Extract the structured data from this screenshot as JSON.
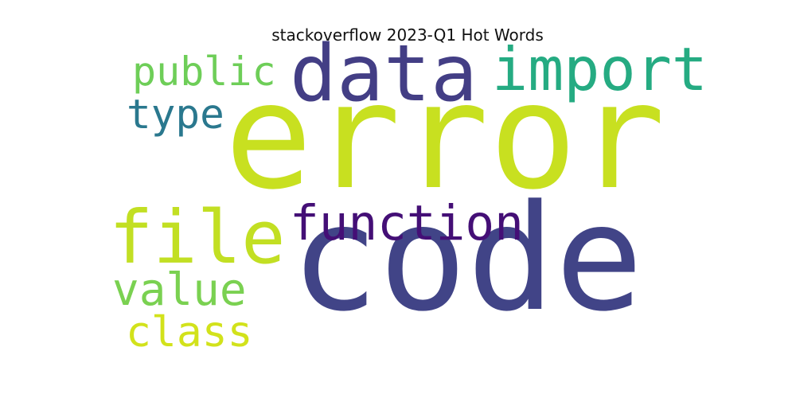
{
  "title": "stackoverflow 2023-Q1 Hot Words",
  "cloud": {
    "words": [
      {
        "id": "error",
        "text": "error",
        "color": "#c8e020"
      },
      {
        "id": "code",
        "text": "code",
        "color": "#414487"
      },
      {
        "id": "data",
        "text": "data",
        "color": "#433e85"
      },
      {
        "id": "import",
        "text": "import",
        "color": "#25ab82"
      },
      {
        "id": "file",
        "text": "file",
        "color": "#c2df23"
      },
      {
        "id": "function",
        "text": "function",
        "color": "#440f76"
      },
      {
        "id": "public",
        "text": "public",
        "color": "#6ece58"
      },
      {
        "id": "type",
        "text": "type",
        "color": "#2a788e"
      },
      {
        "id": "value",
        "text": "value",
        "color": "#7ad151"
      },
      {
        "id": "class",
        "text": "class",
        "color": "#d2e21b"
      }
    ]
  }
}
